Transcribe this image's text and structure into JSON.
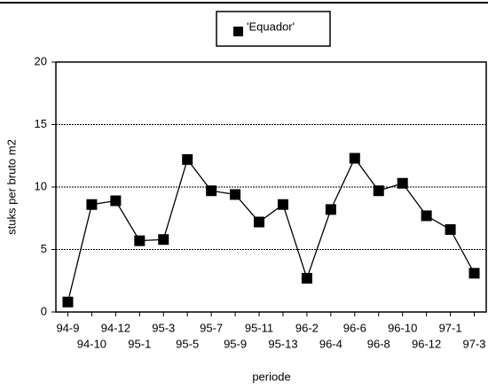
{
  "chart_data": {
    "type": "line",
    "xlabel": "periode",
    "ylabel": "stuks per bruto m2",
    "categories": [
      "94-9",
      "94-10",
      "94-12",
      "95-1",
      "95-3",
      "95-5",
      "95-7",
      "95-9",
      "95-11",
      "95-13",
      "96-2",
      "96-4",
      "96-6",
      "96-8",
      "96-10",
      "96-12",
      "97-1",
      "97-3"
    ],
    "series": [
      {
        "name": "'Equador'",
        "color": "#000000",
        "values": [
          0.8,
          8.6,
          8.9,
          5.7,
          5.8,
          12.2,
          9.7,
          9.4,
          7.2,
          8.6,
          2.7,
          8.2,
          12.3,
          9.7,
          10.3,
          7.7,
          6.6,
          3.1
        ]
      }
    ],
    "ylim": [
      0,
      20
    ],
    "yticks": [
      0,
      5,
      10,
      15,
      20
    ],
    "grid": true,
    "legend": "top"
  }
}
